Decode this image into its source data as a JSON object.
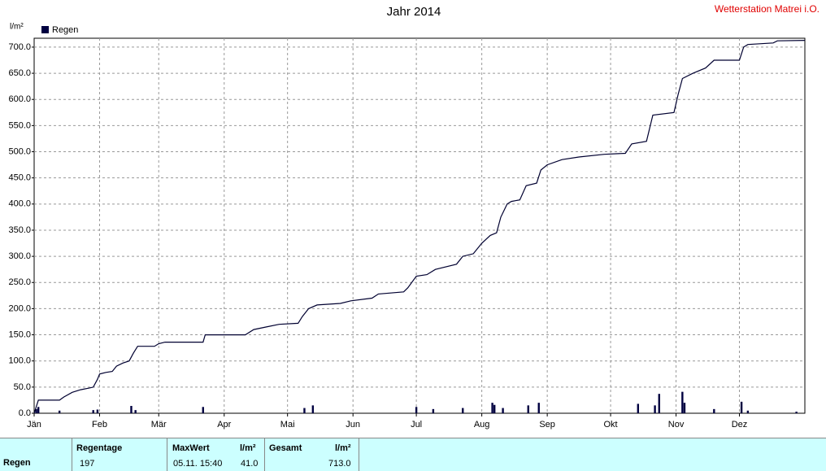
{
  "chart_data": {
    "type": "rain-year",
    "title": "Jahr 2014",
    "station": "Wetterstation Matrei i.O.",
    "y_unit": "l/m²",
    "xlim": [
      0,
      365
    ],
    "ylim": [
      0,
      717
    ],
    "grid": true,
    "xticks": [
      {
        "value": 0,
        "label": "Jän"
      },
      {
        "value": 31,
        "label": "Feb"
      },
      {
        "value": 59,
        "label": "Mär"
      },
      {
        "value": 90,
        "label": "Apr"
      },
      {
        "value": 120,
        "label": "Mai"
      },
      {
        "value": 151,
        "label": "Jun"
      },
      {
        "value": 181,
        "label": "Jul"
      },
      {
        "value": 212,
        "label": "Aug"
      },
      {
        "value": 243,
        "label": "Sep"
      },
      {
        "value": 273,
        "label": "Okt"
      },
      {
        "value": 304,
        "label": "Nov"
      },
      {
        "value": 334,
        "label": "Dez"
      }
    ],
    "yticks": [
      {
        "value": 0,
        "label": "0.0"
      },
      {
        "value": 50,
        "label": "50.0"
      },
      {
        "value": 100,
        "label": "100.0"
      },
      {
        "value": 150,
        "label": "150.0"
      },
      {
        "value": 200,
        "label": "200.0"
      },
      {
        "value": 250,
        "label": "250.0"
      },
      {
        "value": 300,
        "label": "300.0"
      },
      {
        "value": 350,
        "label": "350.0"
      },
      {
        "value": 400,
        "label": "400.0"
      },
      {
        "value": 450,
        "label": "450.0"
      },
      {
        "value": 500,
        "label": "500.0"
      },
      {
        "value": 550,
        "label": "550.0"
      },
      {
        "value": 600,
        "label": "600.0"
      },
      {
        "value": 650,
        "label": "650.0"
      },
      {
        "value": 700,
        "label": "700.0"
      }
    ],
    "series": [
      {
        "name": "Regen",
        "type": "bar",
        "color": "#000040",
        "x": [
          1,
          2,
          12,
          28,
          30,
          46,
          48,
          80,
          128,
          132,
          181,
          189,
          203,
          217,
          218,
          222,
          234,
          239,
          286,
          294,
          296,
          307,
          308,
          322,
          335,
          338,
          361
        ],
        "values": [
          8,
          12,
          5,
          6,
          7,
          14,
          6,
          12,
          10,
          15,
          12,
          8,
          10,
          20,
          16,
          10,
          15,
          20,
          18,
          15,
          37,
          41,
          20,
          8,
          22,
          5,
          3
        ]
      },
      {
        "type": "line",
        "color": "#000030",
        "x": [
          0,
          2,
          12,
          14,
          18,
          22,
          26,
          28,
          30,
          31,
          34,
          37,
          39,
          42,
          45,
          47,
          49,
          57,
          59,
          62,
          80,
          81,
          100,
          104,
          110,
          116,
          125,
          127,
          130,
          134,
          145,
          150,
          160,
          163,
          175,
          177,
          181,
          186,
          190,
          200,
          203,
          208,
          212,
          216,
          219,
          221,
          224,
          226,
          230,
          233,
          238,
          240,
          243,
          250,
          258,
          270,
          280,
          283,
          290,
          293,
          303,
          305,
          307,
          312,
          318,
          322,
          334,
          336,
          338,
          350,
          352,
          365
        ],
        "values": [
          0,
          25,
          25,
          31,
          40,
          45,
          48,
          50,
          65,
          75,
          78,
          80,
          90,
          96,
          100,
          115,
          128,
          128,
          133,
          136,
          136,
          150,
          150,
          160,
          165,
          170,
          172,
          185,
          200,
          207,
          210,
          215,
          220,
          228,
          232,
          240,
          262,
          265,
          275,
          285,
          300,
          305,
          325,
          340,
          345,
          375,
          400,
          405,
          408,
          435,
          440,
          465,
          475,
          485,
          490,
          495,
          497,
          515,
          520,
          570,
          575,
          610,
          640,
          650,
          660,
          675,
          675,
          700,
          705,
          708,
          712,
          713
        ]
      }
    ]
  },
  "table": {
    "row_label": "Regen",
    "headers": [
      "Regentage",
      "MaxWert",
      "l/m²",
      "Gesamt",
      "l/m²"
    ],
    "values": [
      "197",
      "05.11. 15:40",
      "41.0",
      "713.0"
    ]
  }
}
